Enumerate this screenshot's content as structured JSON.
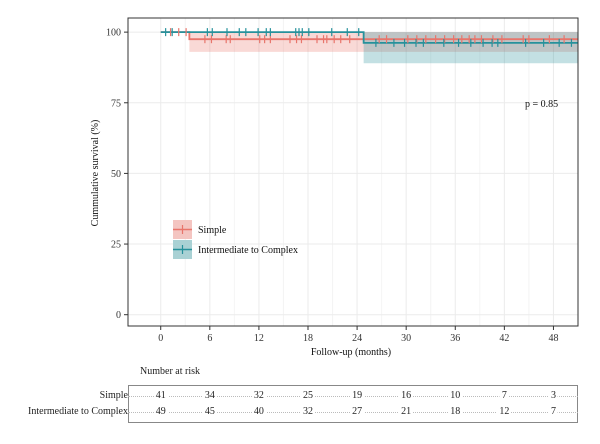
{
  "chart_data": {
    "type": "line",
    "subtype": "kaplan-meier",
    "xlabel": "Follow-up (months)",
    "ylabel": "Cummulative survival (%)",
    "xlim": [
      -4,
      51
    ],
    "ylim": [
      -4,
      105
    ],
    "xticks": [
      0,
      6,
      12,
      18,
      24,
      30,
      36,
      42,
      48
    ],
    "yticks": [
      0,
      25,
      50,
      75,
      100
    ],
    "grid": true,
    "legend_position": "left-middle",
    "annotation": "p = 0.85",
    "series": [
      {
        "name": "Simple",
        "color": "#e8756b",
        "steps": [
          [
            0,
            100
          ],
          [
            3.5,
            97.5
          ],
          [
            51,
            97.5
          ]
        ],
        "ci": [
          [
            0,
            100,
            100
          ],
          [
            3.5,
            100,
            93
          ],
          [
            51,
            100,
            93
          ]
        ],
        "censor_x": [
          1.2,
          2.2,
          3.1,
          5.4,
          6.2,
          8.0,
          8.5,
          12.1,
          12.7,
          13.4,
          15.8,
          16.6,
          17.2,
          19.1,
          19.9,
          20.3,
          21.2,
          22.0,
          23.1,
          26.7,
          27.6,
          30.2,
          31.3,
          32.4,
          33.6,
          34.7,
          35.8,
          36.8,
          37.7,
          38.4,
          39.2,
          40.6,
          41.7,
          44.3,
          45.0,
          47.5,
          49.3
        ]
      },
      {
        "name": "Intermediate to Complex",
        "color": "#26919b",
        "steps": [
          [
            0,
            100
          ],
          [
            24.8,
            96.2
          ],
          [
            51,
            96.2
          ]
        ],
        "ci": [
          [
            0,
            100,
            100
          ],
          [
            24.8,
            100,
            89
          ],
          [
            51,
            100,
            89
          ]
        ],
        "censor_x": [
          0.6,
          1.4,
          5.7,
          6.3,
          8.1,
          9.6,
          10.4,
          11.9,
          12.9,
          13.4,
          16.5,
          16.9,
          17.3,
          18.1,
          20.9,
          22.8,
          24.2,
          26.3,
          28.5,
          29.8,
          31.2,
          32.1,
          34.6,
          36.4,
          37.9,
          39.4,
          40.5,
          41.2,
          44.6,
          46.8,
          48.7,
          50.2
        ]
      }
    ],
    "risk_table": {
      "title": "Number at risk",
      "times": [
        0,
        6,
        12,
        18,
        24,
        30,
        36,
        42,
        48
      ],
      "rows": [
        {
          "label": "Simple",
          "values": [
            "41",
            "34",
            "32",
            "25",
            "19",
            "16",
            "10",
            "7",
            "3"
          ]
        },
        {
          "label": "Intermediate to Complex",
          "values": [
            "49",
            "45",
            "40",
            "32",
            "27",
            "21",
            "18",
            "12",
            "7"
          ]
        }
      ]
    }
  }
}
